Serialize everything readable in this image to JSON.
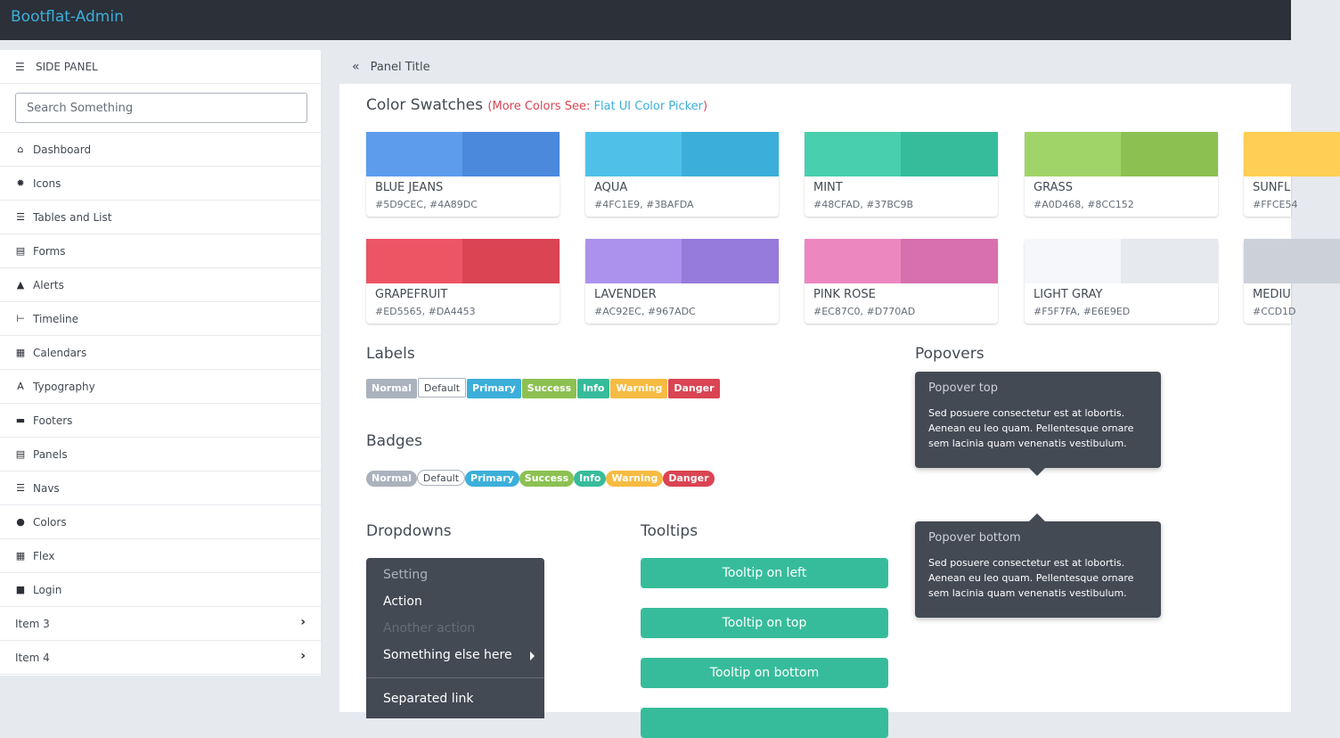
{
  "brand": "Bootflat-Admin",
  "sidebar": {
    "header": "SIDE PANEL",
    "search_placeholder": "Search Something",
    "items": [
      {
        "label": "Dashboard",
        "icon": "⌂"
      },
      {
        "label": "Icons",
        "icon": "✹"
      },
      {
        "label": "Tables and List",
        "icon": "☰"
      },
      {
        "label": "Forms",
        "icon": "▤"
      },
      {
        "label": "Alerts",
        "icon": "▲"
      },
      {
        "label": "Timeline",
        "icon": "⊢"
      },
      {
        "label": "Calendars",
        "icon": "▦"
      },
      {
        "label": "Typography",
        "icon": "A"
      },
      {
        "label": "Footers",
        "icon": "▬"
      },
      {
        "label": "Panels",
        "icon": "▤"
      },
      {
        "label": "Navs",
        "icon": "☰"
      },
      {
        "label": "Colors",
        "icon": "●"
      },
      {
        "label": "Flex",
        "icon": "▦"
      },
      {
        "label": "Login",
        "icon": "■"
      },
      {
        "label": "Item 3",
        "icon": ""
      },
      {
        "label": "Item 4",
        "icon": ""
      }
    ]
  },
  "panel": {
    "title": "Panel Title",
    "collapse_icon": "«"
  },
  "color_swatches": {
    "title": "Color Swatches",
    "more_prefix": "(More Colors See: ",
    "link": "Flat UI Color Picker",
    "more_suffix": ")",
    "items": [
      {
        "name": "BLUE JEANS",
        "hex": "#5D9CEC, #4A89DC",
        "c1": "#5D9CEC",
        "c2": "#4A89DC"
      },
      {
        "name": "AQUA",
        "hex": "#4FC1E9, #3BAFDA",
        "c1": "#4FC1E9",
        "c2": "#3BAFDA"
      },
      {
        "name": "MINT",
        "hex": "#48CFAD, #37BC9B",
        "c1": "#48CFAD",
        "c2": "#37BC9B"
      },
      {
        "name": "GRASS",
        "hex": "#A0D468, #8CC152",
        "c1": "#A0D468",
        "c2": "#8CC152"
      },
      {
        "name": "SUNFL",
        "hex": "#FFCE54",
        "c1": "#FFCE54",
        "c2": "#F6BB42"
      },
      {
        "name": "GRAPEFRUIT",
        "hex": "#ED5565, #DA4453",
        "c1": "#ED5565",
        "c2": "#DA4453"
      },
      {
        "name": "LAVENDER",
        "hex": "#AC92EC, #967ADC",
        "c1": "#AC92EC",
        "c2": "#967ADC"
      },
      {
        "name": "PINK ROSE",
        "hex": "#EC87C0, #D770AD",
        "c1": "#EC87C0",
        "c2": "#D770AD"
      },
      {
        "name": "LIGHT GRAY",
        "hex": "#F5F7FA, #E6E9ED",
        "c1": "#F5F7FA",
        "c2": "#E6E9ED"
      },
      {
        "name": "MEDIU",
        "hex": "#CCD1D",
        "c1": "#CCD1D9",
        "c2": "#AAB2BD"
      }
    ]
  },
  "labels": {
    "title": "Labels",
    "items": [
      "Normal",
      "Default",
      "Primary",
      "Success",
      "Info",
      "Warning",
      "Danger"
    ]
  },
  "badges": {
    "title": "Badges",
    "items": [
      "Normal",
      "Default",
      "Primary",
      "Success",
      "Info",
      "Warning",
      "Danger"
    ]
  },
  "dropdowns": {
    "title": "Dropdowns",
    "header": "Setting",
    "action": "Action",
    "another": "Another action",
    "something": "Something else here",
    "separated": "Separated link"
  },
  "tooltips": {
    "title": "Tooltips",
    "left": "Tooltip on left",
    "top": "Tooltip on top",
    "bottom": "Tooltip on bottom"
  },
  "popovers": {
    "title": "Popovers",
    "top_title": "Popover top",
    "bottom_title": "Popover bottom",
    "body": "Sed posuere consectetur est at lobortis. Aenean eu leo quam. Pellentesque ornare sem lacinia quam venenatis vestibulum."
  },
  "colors": {
    "topbar": "#2B3039",
    "brand": "#3BAFDA",
    "tooltip_button": "#37BC9B",
    "dropdown_bg": "#434A54"
  }
}
